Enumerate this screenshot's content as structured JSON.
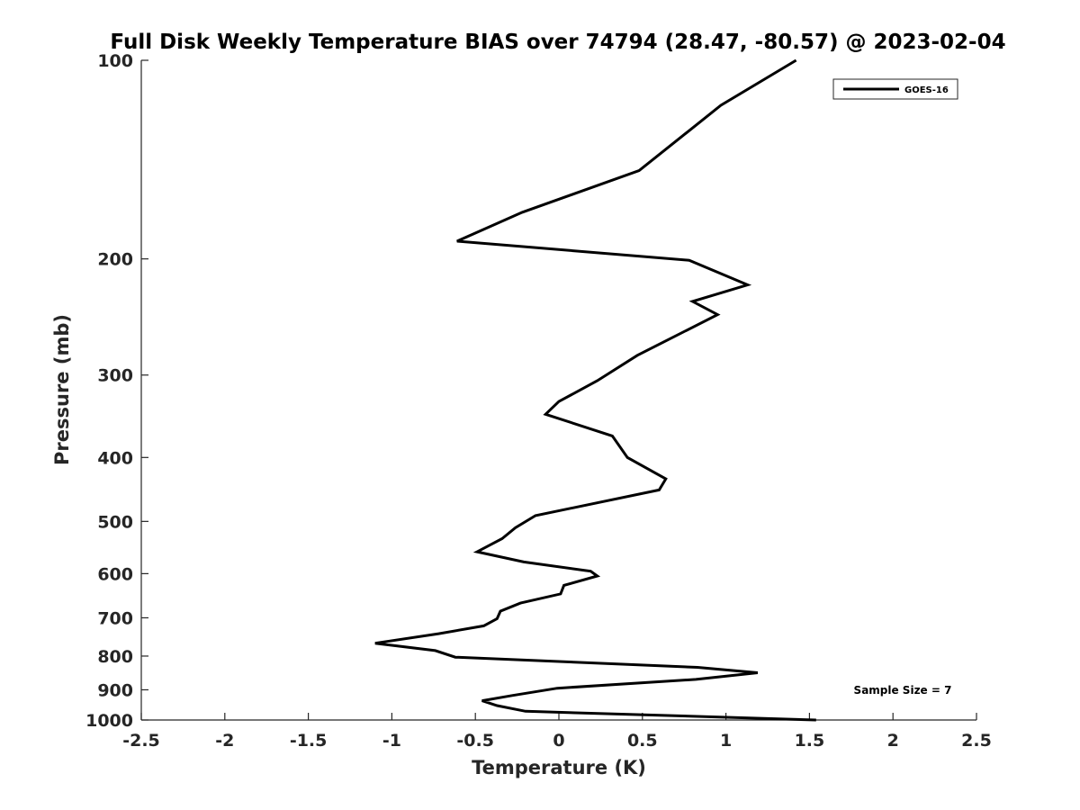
{
  "chart_data": {
    "type": "line",
    "title": "Full Disk Weekly Temperature BIAS over 74794 (28.47, -80.57) @ 2023-02-04",
    "xlabel": "Temperature (K)",
    "ylabel": "Pressure (mb)",
    "xlim": [
      -2.5,
      2.5
    ],
    "ylim": [
      100,
      1000
    ],
    "y_scale": "log",
    "y_reversed": true,
    "grid": false,
    "legend_position": "top-right",
    "x_ticks": [
      "-2.5",
      "-2",
      "-1.5",
      "-1",
      "-0.5",
      "0",
      "0.5",
      "1",
      "1.5",
      "2",
      "2.5"
    ],
    "x_tick_values": [
      -2.5,
      -2,
      -1.5,
      -1,
      -0.5,
      0,
      0.5,
      1,
      1.5,
      2,
      2.5
    ],
    "y_ticks": [
      "100",
      "200",
      "300",
      "400",
      "500",
      "600",
      "700",
      "800",
      "900",
      "1000"
    ],
    "y_tick_values": [
      100,
      200,
      300,
      400,
      500,
      600,
      700,
      800,
      900,
      1000
    ],
    "annotation": "Sample Size = 7",
    "series": [
      {
        "name": "GOES-16",
        "color": "#000000",
        "x": [
          1.42,
          0.97,
          0.48,
          -0.22,
          -0.61,
          0.78,
          1.13,
          0.8,
          0.95,
          0.47,
          0.23,
          0.0,
          -0.08,
          0.32,
          0.41,
          0.64,
          0.6,
          -0.14,
          -0.26,
          -0.34,
          -0.49,
          -0.21,
          0.19,
          0.23,
          0.03,
          0.01,
          -0.23,
          -0.35,
          -0.37,
          -0.45,
          -0.72,
          -1.1,
          -0.74,
          -0.62,
          0.83,
          1.19,
          0.82,
          -0.01,
          -0.28,
          -0.46,
          -0.37,
          -0.2,
          1.54
        ],
        "y": [
          100,
          117,
          147,
          170,
          188,
          201,
          219,
          232,
          243,
          280,
          306,
          329,
          344,
          371,
          400,
          431,
          448,
          490,
          511,
          531,
          556,
          576,
          595,
          605,
          625,
          644,
          665,
          684,
          702,
          720,
          740,
          765,
          785,
          803,
          832,
          848,
          868,
          895,
          918,
          935,
          951,
          970,
          1000
        ]
      }
    ]
  }
}
